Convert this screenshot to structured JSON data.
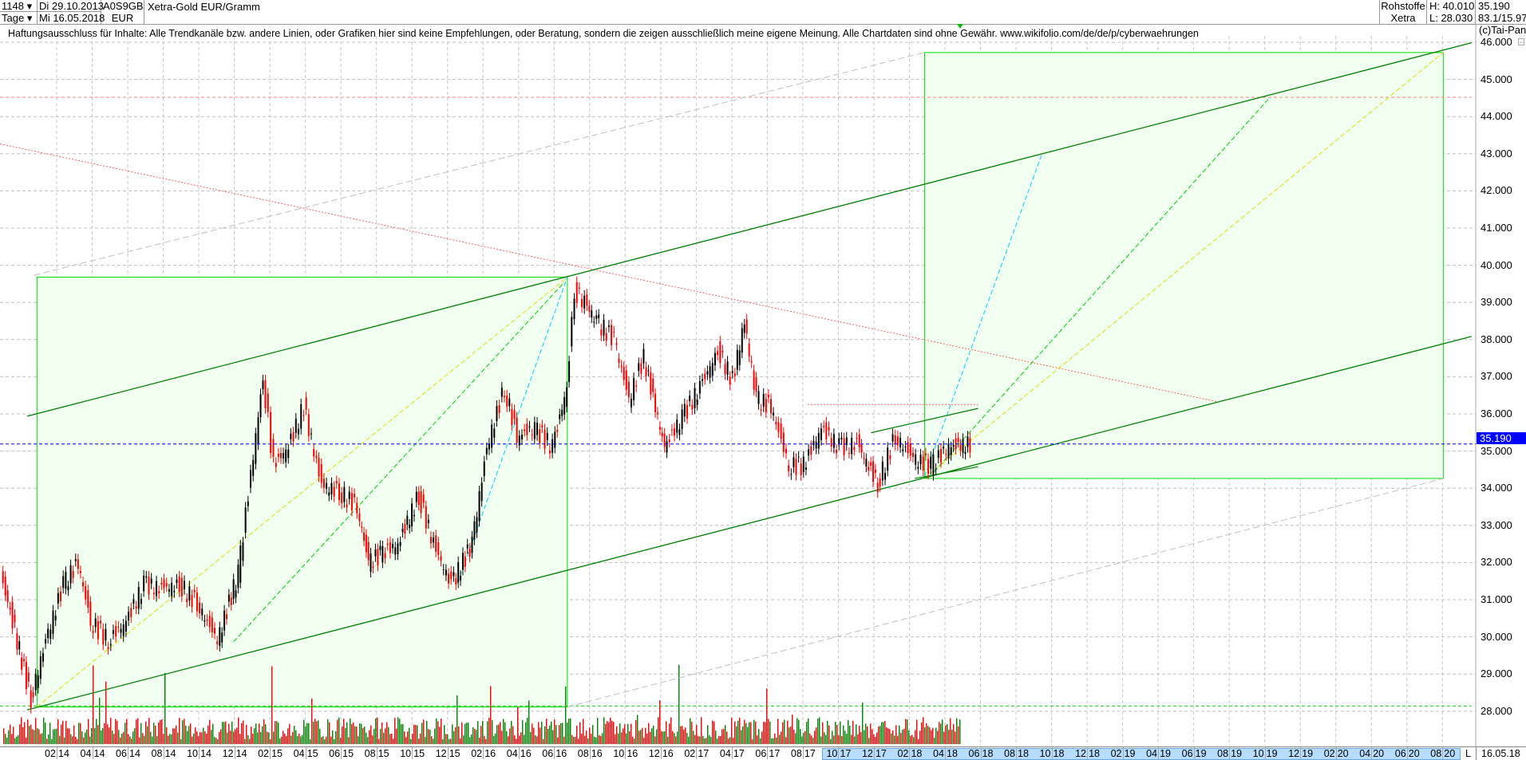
{
  "header": {
    "count": "1148",
    "period": "Tage",
    "start_date": "Di 29.10.2013",
    "end_date": "Mi 16.05.2018",
    "isin": "A0S9GB",
    "currency": "EUR",
    "title": "Xetra-Gold EUR/Gramm",
    "category": "Rohstoffe",
    "exchange": "Xetra",
    "high": "H: 40.010",
    "low": "L: 28.030",
    "last": "35.190",
    "ratio": "83.1/15.97",
    "copyright": "(c)Tai-Pan"
  },
  "disclaimer": "Haftungsausschluss für Inhalte: Alle Trendkanäle bzw. andere Linien, oder Grafiken hier sind keine Empfehlungen, oder Beratung, sondern die zeigen ausschließlich meine eigene Meinung. Alle Chartdaten sind ohne Gewähr.  www.wikifolio.com/de/de/p/cyberwaehrungen",
  "footer": {
    "mode": "L",
    "date": "16.05.18"
  },
  "colors": {
    "up": "#000000",
    "down": "#ff0000",
    "channel": "#008000",
    "box_stroke": "#00e000",
    "box_fill": "#f0fff0",
    "current_price": "#0000ff",
    "volume_up": "#008000",
    "volume_down": "#ff0000"
  },
  "chart_data": {
    "type": "line",
    "title": "Xetra-Gold EUR/Gramm",
    "ylim": [
      28,
      46
    ],
    "y_ticks": [
      "46.000",
      "45.000",
      "44.000",
      "43.000",
      "42.000",
      "41.000",
      "40.000",
      "39.000",
      "38.000",
      "37.000",
      "36.000",
      "35.000",
      "34.000",
      "33.000",
      "32.000",
      "31.000",
      "30.000",
      "29.000",
      "28.000"
    ],
    "x_ticks": [
      [
        "02",
        "14"
      ],
      [
        "04",
        "14"
      ],
      [
        "06",
        "14"
      ],
      [
        "08",
        "14"
      ],
      [
        "10",
        "14"
      ],
      [
        "12",
        "14"
      ],
      [
        "02",
        "15"
      ],
      [
        "04",
        "15"
      ],
      [
        "06",
        "15"
      ],
      [
        "08",
        "15"
      ],
      [
        "10",
        "15"
      ],
      [
        "12",
        "15"
      ],
      [
        "02",
        "16"
      ],
      [
        "04",
        "16"
      ],
      [
        "06",
        "16"
      ],
      [
        "08",
        "16"
      ],
      [
        "10",
        "16"
      ],
      [
        "12",
        "16"
      ],
      [
        "02",
        "17"
      ],
      [
        "04",
        "17"
      ],
      [
        "06",
        "17"
      ],
      [
        "08",
        "17"
      ],
      [
        "10",
        "17"
      ],
      [
        "12",
        "17"
      ],
      [
        "02",
        "18"
      ],
      [
        "04",
        "18"
      ],
      [
        "06",
        "18"
      ],
      [
        "08",
        "18"
      ],
      [
        "10",
        "18"
      ],
      [
        "12",
        "18"
      ],
      [
        "02",
        "19"
      ],
      [
        "04",
        "19"
      ],
      [
        "06",
        "19"
      ],
      [
        "08",
        "19"
      ],
      [
        "10",
        "19"
      ],
      [
        "12",
        "19"
      ],
      [
        "02",
        "20"
      ],
      [
        "04",
        "20"
      ],
      [
        "06",
        "20"
      ],
      [
        "08",
        "20"
      ]
    ],
    "grid": true,
    "current_price": "35.190",
    "series": [
      {
        "points": [
          [
            "2013-10-29",
            31.6
          ],
          [
            "2013-11-15",
            30.7
          ],
          [
            "2013-12-20",
            28.3
          ],
          [
            "2014-01-15",
            29.9
          ],
          [
            "2014-02-15",
            31.4
          ],
          [
            "2014-03-10",
            32.0
          ],
          [
            "2014-04-01",
            30.4
          ],
          [
            "2014-05-01",
            29.9
          ],
          [
            "2014-06-01",
            30.4
          ],
          [
            "2014-07-01",
            31.4
          ],
          [
            "2014-08-01",
            31.3
          ],
          [
            "2014-09-01",
            31.4
          ],
          [
            "2014-10-01",
            30.9
          ],
          [
            "2014-11-05",
            29.9
          ],
          [
            "2014-12-10",
            31.7
          ],
          [
            "2015-01-10",
            35.4
          ],
          [
            "2015-01-22",
            37.0
          ],
          [
            "2015-02-10",
            34.6
          ],
          [
            "2015-03-05",
            35.1
          ],
          [
            "2015-04-01",
            36.2
          ],
          [
            "2015-05-01",
            34.1
          ],
          [
            "2015-06-01",
            33.9
          ],
          [
            "2015-07-01",
            33.5
          ],
          [
            "2015-07-20",
            32.0
          ],
          [
            "2015-08-10",
            32.2
          ],
          [
            "2015-09-10",
            32.5
          ],
          [
            "2015-10-15",
            33.8
          ],
          [
            "2015-11-10",
            32.5
          ],
          [
            "2015-12-10",
            31.4
          ],
          [
            "2016-01-15",
            32.5
          ],
          [
            "2016-02-10",
            35.1
          ],
          [
            "2016-03-10",
            36.7
          ],
          [
            "2016-04-01",
            35.4
          ],
          [
            "2016-05-01",
            35.6
          ],
          [
            "2016-06-01",
            35.1
          ],
          [
            "2016-06-25",
            36.7
          ],
          [
            "2016-07-08",
            39.3
          ],
          [
            "2016-07-25",
            39.0
          ],
          [
            "2016-08-15",
            38.5
          ],
          [
            "2016-09-15",
            38.0
          ],
          [
            "2016-10-10",
            36.4
          ],
          [
            "2016-11-05",
            37.5
          ],
          [
            "2016-12-10",
            35.1
          ],
          [
            "2017-01-10",
            35.9
          ],
          [
            "2017-02-10",
            36.7
          ],
          [
            "2017-03-10",
            37.7
          ],
          [
            "2017-04-05",
            36.9
          ],
          [
            "2017-04-25",
            38.5
          ],
          [
            "2017-05-15",
            36.4
          ],
          [
            "2017-06-10",
            36.2
          ],
          [
            "2017-07-10",
            34.6
          ],
          [
            "2017-08-05",
            34.6
          ],
          [
            "2017-09-05",
            35.6
          ],
          [
            "2017-10-05",
            35.1
          ],
          [
            "2017-11-05",
            35.2
          ],
          [
            "2017-12-10",
            34.1
          ],
          [
            "2018-01-10",
            35.4
          ],
          [
            "2018-02-10",
            34.8
          ],
          [
            "2018-03-10",
            34.6
          ],
          [
            "2018-04-10",
            35.1
          ],
          [
            "2018-05-16",
            35.19
          ]
        ]
      }
    ]
  }
}
